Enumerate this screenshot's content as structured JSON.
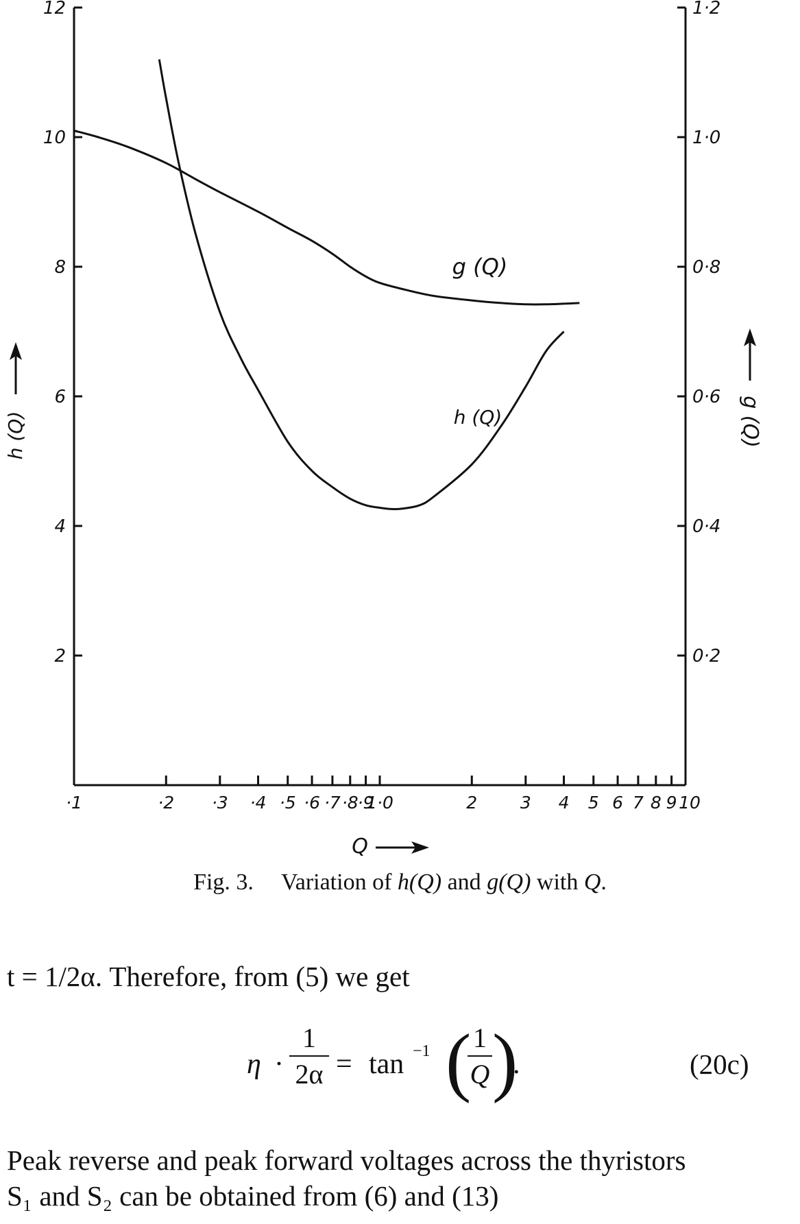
{
  "chart_data": {
    "type": "line",
    "xscale": "log",
    "xlim": [
      0.1,
      10
    ],
    "x_ticks": [
      0.1,
      0.2,
      0.3,
      0.4,
      0.5,
      0.6,
      0.7,
      0.8,
      0.9,
      1.0,
      2,
      3,
      4,
      5,
      6,
      7,
      8,
      9,
      10
    ],
    "x_tick_labels": [
      {
        "x": 0.1,
        "label": "·1"
      },
      {
        "x": 0.2,
        "label": "·2"
      },
      {
        "x": 0.3,
        "label": "·3"
      },
      {
        "x": 0.4,
        "label": "·4"
      },
      {
        "x": 0.5,
        "label": "·5"
      },
      {
        "x": 0.6,
        "label": "·6"
      },
      {
        "x": 0.7,
        "label": "·7"
      },
      {
        "x": 0.8,
        "label": "·8"
      },
      {
        "x": 0.9,
        "label": "·9"
      },
      {
        "x": 1.0,
        "label": "1·0"
      },
      {
        "x": 2,
        "label": "2"
      },
      {
        "x": 3,
        "label": "3"
      },
      {
        "x": 4,
        "label": "4"
      },
      {
        "x": 5,
        "label": "5"
      },
      {
        "x": 6,
        "label": "6"
      },
      {
        "x": 7,
        "label": "7"
      },
      {
        "x": 8,
        "label": "8"
      },
      {
        "x": 9,
        "label": "9"
      },
      {
        "x": 10,
        "label": "10"
      }
    ],
    "xlabel": "Q",
    "y_left": {
      "label": "h (Q)",
      "ylim": [
        0,
        12
      ],
      "ticks": [
        {
          "v": 2,
          "label": "2"
        },
        {
          "v": 4,
          "label": "4"
        },
        {
          "v": 6,
          "label": "6"
        },
        {
          "v": 8,
          "label": "8"
        },
        {
          "v": 10,
          "label": "10"
        },
        {
          "v": 12,
          "label": "12"
        }
      ]
    },
    "y_right": {
      "label": "g (Q)",
      "ylim": [
        0,
        1.2
      ],
      "ticks": [
        {
          "v": 0.2,
          "label": "0·2"
        },
        {
          "v": 0.4,
          "label": "0·4"
        },
        {
          "v": 0.6,
          "label": "0·6"
        },
        {
          "v": 0.8,
          "label": "0·8"
        },
        {
          "v": 1.0,
          "label": "1·0"
        },
        {
          "v": 1.2,
          "label": "1·2"
        }
      ]
    },
    "series": [
      {
        "name": "g (Q)",
        "axis": "right",
        "x": [
          0.1,
          0.12,
          0.15,
          0.2,
          0.25,
          0.3,
          0.4,
          0.5,
          0.6,
          0.7,
          0.8,
          0.9,
          1.0,
          1.2,
          1.5,
          2.0,
          2.5,
          3.0,
          3.5,
          4.0,
          4.5
        ],
        "y": [
          1.01,
          1.0,
          0.985,
          0.96,
          0.935,
          0.915,
          0.885,
          0.86,
          0.84,
          0.82,
          0.8,
          0.785,
          0.775,
          0.765,
          0.755,
          0.748,
          0.744,
          0.742,
          0.742,
          0.743,
          0.744
        ]
      },
      {
        "name": "h (Q)",
        "axis": "left",
        "x": [
          0.19,
          0.2,
          0.22,
          0.25,
          0.3,
          0.35,
          0.4,
          0.5,
          0.6,
          0.7,
          0.8,
          0.9,
          1.0,
          1.1,
          1.2,
          1.35,
          1.5,
          2.0,
          2.5,
          3.0,
          3.5,
          4.0
        ],
        "y": [
          11.2,
          10.6,
          9.6,
          8.5,
          7.3,
          6.6,
          6.1,
          5.3,
          4.85,
          4.6,
          4.42,
          4.32,
          4.28,
          4.26,
          4.27,
          4.32,
          4.45,
          4.95,
          5.55,
          6.15,
          6.7,
          7.0
        ]
      }
    ]
  },
  "caption": {
    "fig_no": "Fig. 3.",
    "text_pre": "Variation of ",
    "h": "h",
    "q1": "(Q)",
    "and": " and ",
    "g": "g",
    "q2": "(Q)",
    "with": " with ",
    "q3": "Q",
    "end": "."
  },
  "body": {
    "line1": "t = 1/2α. Therefore, from (5) we get",
    "equation": {
      "eta": "η",
      "dot": "·",
      "frac1_num": "1",
      "frac1_den": "2α",
      "equals": "=",
      "tan": "tan",
      "sup": "−1",
      "frac2_num": "1",
      "frac2_den": "Q",
      "period": ".",
      "number": "(20c)"
    },
    "line2": "Peak reverse and peak forward voltages across the thyristors",
    "line3": "S₁ and S₂ can be obtained from (6) and (13)"
  }
}
